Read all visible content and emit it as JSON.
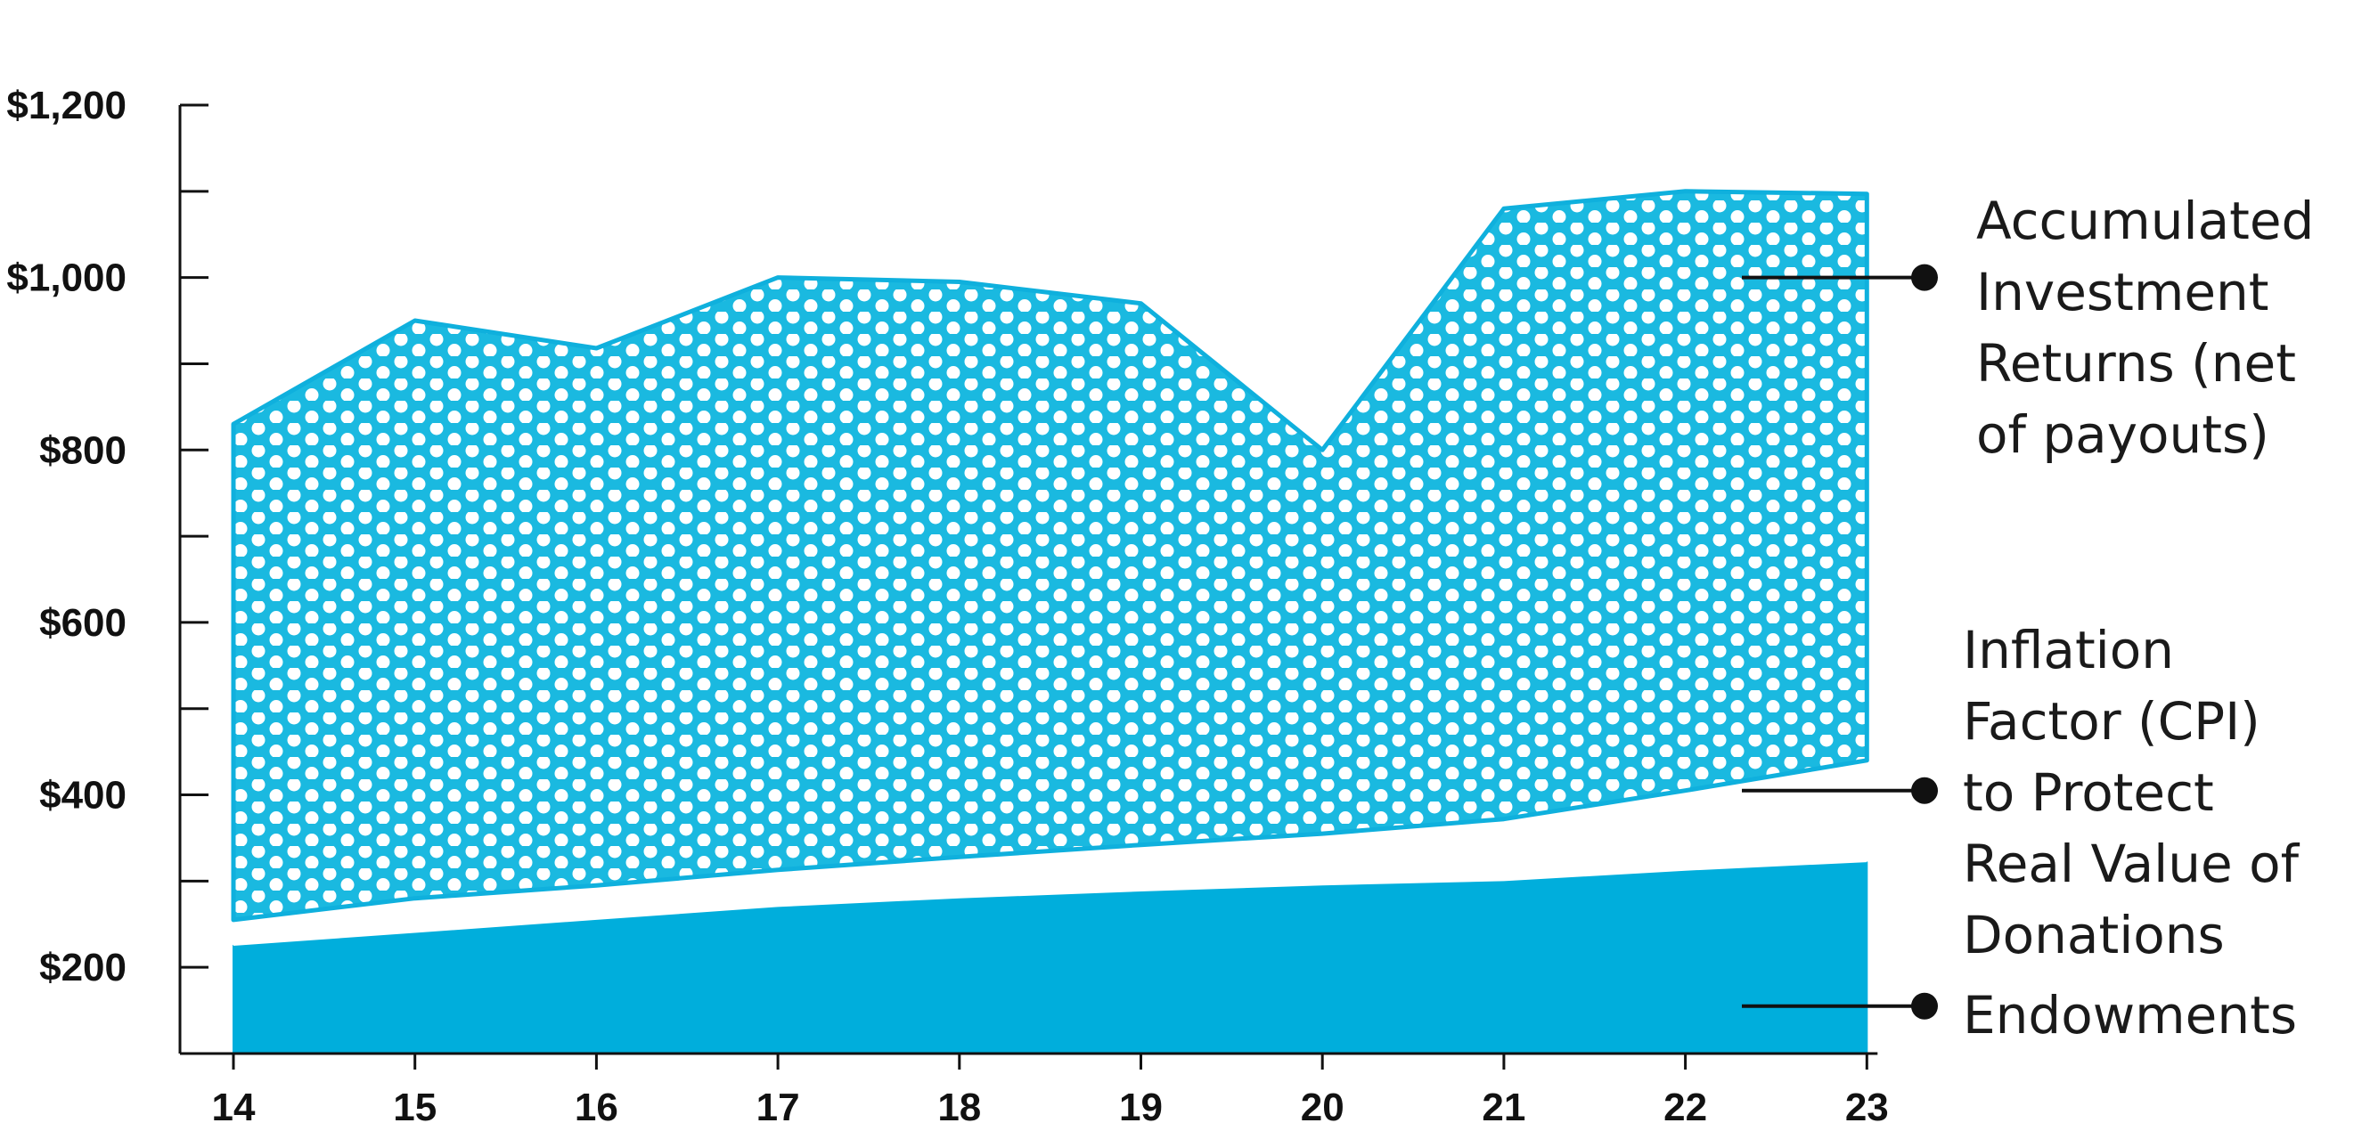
{
  "chart_data": {
    "type": "area",
    "stacked": true,
    "x": [
      "14",
      "15",
      "16",
      "17",
      "18",
      "19",
      "20",
      "21",
      "22",
      "23"
    ],
    "series": [
      {
        "name": "Endowments",
        "total": [
          225,
          240,
          255,
          270,
          280,
          288,
          295,
          300,
          312,
          322
        ],
        "color": "#00aedc",
        "pattern": "solid"
      },
      {
        "name": "Inflation Factor (CPI) to Protect Real Value of Donations",
        "total": [
          255,
          280,
          295,
          313,
          328,
          342,
          355,
          372,
          405,
          440
        ],
        "color": "#ffffff",
        "pattern": "white"
      },
      {
        "name": "Accumulated Investment Returns (net of payouts)",
        "total": [
          830,
          950,
          918,
          1000,
          995,
          970,
          800,
          1080,
          1100,
          1097
        ],
        "color": "#1ab9e0",
        "pattern": "white-dots"
      }
    ],
    "yticks": [
      {
        "value": 200,
        "label": "$200"
      },
      {
        "value": 400,
        "label": "$400"
      },
      {
        "value": 600,
        "label": "$600"
      },
      {
        "value": 800,
        "label": "$800"
      },
      {
        "value": 1000,
        "label": "$1,000"
      },
      {
        "value": 1200,
        "label": "$1,200"
      }
    ],
    "yminor": [
      300,
      500,
      700,
      900,
      1100
    ],
    "ylim": [
      100,
      1200
    ],
    "title": "",
    "xlabel": "",
    "ylabel": "",
    "legend": [
      {
        "lines": [
          "Accumulated",
          "Investment",
          "Returns (net",
          "of payouts)"
        ],
        "pointer_value": 1000
      },
      {
        "lines": [
          "Inflation",
          "Factor (CPI)",
          "to Protect",
          "Real Value of",
          "Donations"
        ],
        "pointer_value": 405
      },
      {
        "lines": [
          "Endowments"
        ],
        "pointer_value": 155
      }
    ],
    "legend_placement": "right"
  }
}
